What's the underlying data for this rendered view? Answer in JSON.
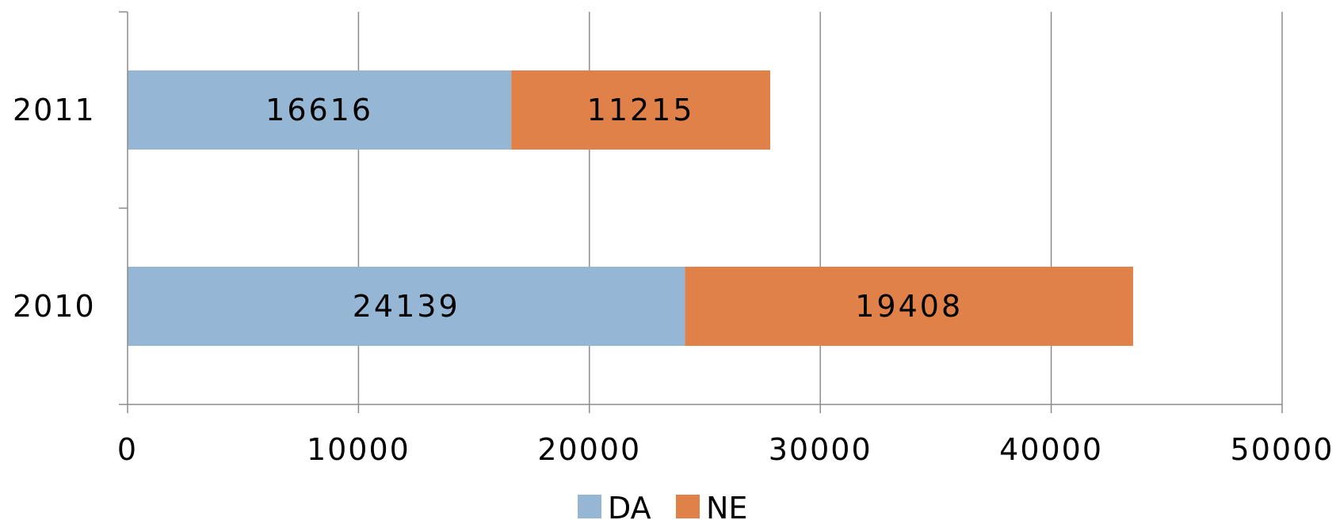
{
  "chart_data": {
    "type": "bar",
    "orientation": "horizontal",
    "stacked": true,
    "categories": [
      "2011",
      "2010"
    ],
    "series": [
      {
        "name": "DA",
        "values": [
          16616,
          24139
        ],
        "color": "#95b6d4"
      },
      {
        "name": "NE",
        "values": [
          11215,
          19408
        ],
        "color": "#e0814a"
      }
    ],
    "xlim": [
      0,
      50000
    ],
    "xticks": [
      "0",
      "10000",
      "20000",
      "30000",
      "40000",
      "50000"
    ],
    "title": "",
    "xlabel": "",
    "ylabel": "",
    "grid": true,
    "legend_position": "bottom",
    "data_labels": true
  }
}
